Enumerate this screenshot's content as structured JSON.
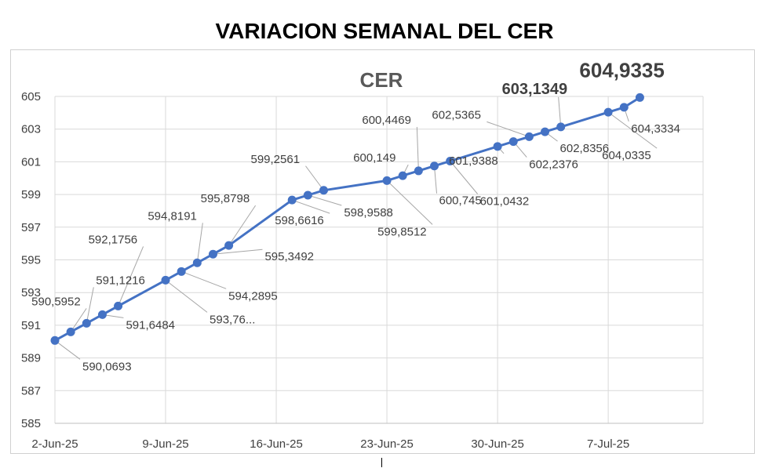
{
  "title": "VARIACION SEMANAL DEL CER",
  "chart_data": {
    "type": "line",
    "title": "CER",
    "series": [
      {
        "name": "CER",
        "color": "#4472C4",
        "points": [
          {
            "x": "2-Jun-25",
            "y": 590.0693,
            "label": "590,0693"
          },
          {
            "x": "3-Jun-25",
            "y": 590.5952,
            "label": "590,5952"
          },
          {
            "x": "4-Jun-25",
            "y": 591.1216,
            "label": "591,1216"
          },
          {
            "x": "5-Jun-25",
            "y": 591.6484,
            "label": "591,6484"
          },
          {
            "x": "6-Jun-25",
            "y": 592.1756,
            "label": "592,1756"
          },
          {
            "x": "9-Jun-25",
            "y": 593.76,
            "label": "593,76..."
          },
          {
            "x": "10-Jun-25",
            "y": 594.2895,
            "label": "594,2895"
          },
          {
            "x": "11-Jun-25",
            "y": 594.8191,
            "label": "594,8191"
          },
          {
            "x": "12-Jun-25",
            "y": 595.3492,
            "label": "595,3492"
          },
          {
            "x": "13-Jun-25",
            "y": 595.8798,
            "label": "595,8798"
          },
          {
            "x": "17-Jun-25",
            "y": 598.6616,
            "label": "598,6616"
          },
          {
            "x": "18-Jun-25",
            "y": 598.9588,
            "label": "598,9588"
          },
          {
            "x": "19-Jun-25",
            "y": 599.2561,
            "label": "599,2561"
          },
          {
            "x": "23-Jun-25",
            "y": 599.8512,
            "label": "599,8512"
          },
          {
            "x": "24-Jun-25",
            "y": 600.149,
            "label": "600,149"
          },
          {
            "x": "25-Jun-25",
            "y": 600.4469,
            "label": "600,4469"
          },
          {
            "x": "26-Jun-25",
            "y": 600.745,
            "label": "600,745"
          },
          {
            "x": "27-Jun-25",
            "y": 601.0432,
            "label": "601,0432"
          },
          {
            "x": "30-Jun-25",
            "y": 601.9388,
            "label": "601,9388"
          },
          {
            "x": "1-Jul-25",
            "y": 602.2376,
            "label": "602,2376"
          },
          {
            "x": "2-Jul-25",
            "y": 602.5365,
            "label": "602,5365"
          },
          {
            "x": "3-Jul-25",
            "y": 602.8356,
            "label": "602,8356"
          },
          {
            "x": "4-Jul-25",
            "y": 603.1349,
            "label": "603,1349"
          },
          {
            "x": "7-Jul-25",
            "y": 604.0335,
            "label": "604,0335"
          },
          {
            "x": "8-Jul-25",
            "y": 604.3334,
            "label": "604,3334"
          },
          {
            "x": "9-Jul-25",
            "y": 604.9335,
            "label": "604,9335"
          }
        ]
      }
    ],
    "x_ticks": [
      "2-Jun-25",
      "9-Jun-25",
      "16-Jun-25",
      "23-Jun-25",
      "30-Jun-25",
      "7-Jul-25"
    ],
    "y_ticks": [
      585,
      587,
      589,
      591,
      593,
      595,
      597,
      599,
      601,
      603,
      605
    ],
    "xlim": [
      "2-Jun-25",
      "13-Jul-25"
    ],
    "ylim": [
      585,
      605
    ],
    "grid": "vertical",
    "legend": "none",
    "highlighted_labels": [
      "603,1349",
      "604,9335"
    ]
  }
}
